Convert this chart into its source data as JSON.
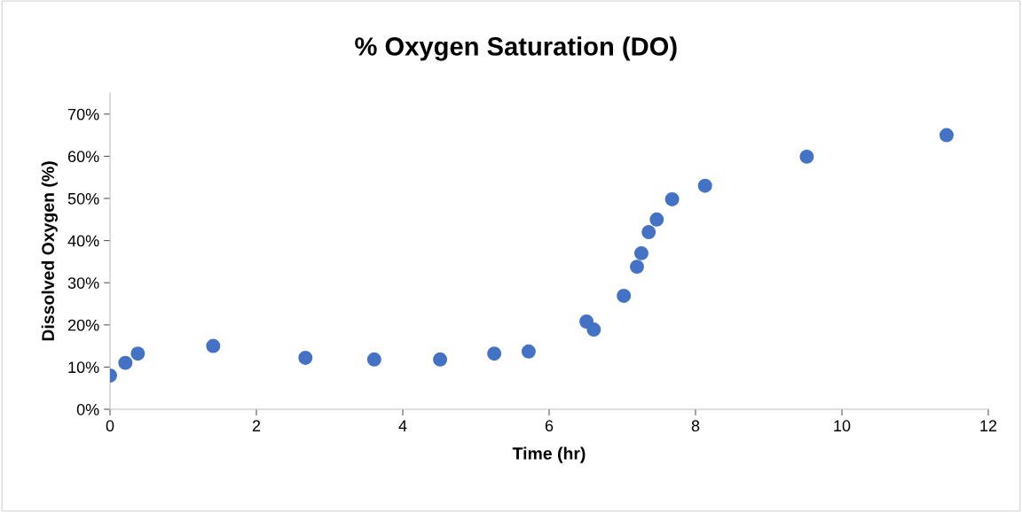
{
  "chart_data": {
    "type": "scatter",
    "title": "% Oxygen Saturation (DO)",
    "xlabel": "Time (hr)",
    "ylabel": "Dissolved Oxygen (%)",
    "x": [
      0,
      0.21,
      0.38,
      1.41,
      2.67,
      3.61,
      4.51,
      5.25,
      5.72,
      6.51,
      6.61,
      7.02,
      7.2,
      7.26,
      7.36,
      7.47,
      7.68,
      8.13,
      9.52,
      11.43
    ],
    "values": [
      8,
      11,
      13.2,
      15,
      12.2,
      11.8,
      11.8,
      13.2,
      13.7,
      20.8,
      18.9,
      26.9,
      33.8,
      37,
      42,
      45,
      49.8,
      53,
      59.9,
      65
    ],
    "color": "#4472c4",
    "marker": "circle",
    "grid": false,
    "legend": false,
    "xlim": [
      0,
      12
    ],
    "xticks": [
      0,
      2,
      4,
      6,
      8,
      10,
      12
    ],
    "ylim": [
      0,
      75
    ],
    "yticks": [
      {
        "value": 0,
        "label": "0%"
      },
      {
        "value": 10,
        "label": "10%"
      },
      {
        "value": 20,
        "label": "20%"
      },
      {
        "value": 30,
        "label": "30%"
      },
      {
        "value": 40,
        "label": "40%"
      },
      {
        "value": 50,
        "label": "50%"
      },
      {
        "value": 60,
        "label": "60%"
      },
      {
        "value": 70,
        "label": "70%"
      }
    ]
  }
}
